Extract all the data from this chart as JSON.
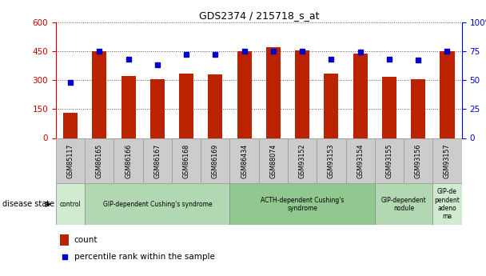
{
  "title": "GDS2374 / 215718_s_at",
  "samples": [
    "GSM85117",
    "GSM86165",
    "GSM86166",
    "GSM86167",
    "GSM86168",
    "GSM86169",
    "GSM86434",
    "GSM88074",
    "GSM93152",
    "GSM93153",
    "GSM93154",
    "GSM93155",
    "GSM93156",
    "GSM93157"
  ],
  "counts": [
    130,
    450,
    320,
    305,
    335,
    330,
    450,
    470,
    455,
    335,
    435,
    315,
    305,
    450
  ],
  "percentiles": [
    48,
    75,
    68,
    63,
    72,
    72,
    75,
    75,
    75,
    68,
    74,
    68,
    67,
    75
  ],
  "groups": [
    {
      "label": "control",
      "start": 0,
      "end": 1,
      "color": "#d0ead0"
    },
    {
      "label": "GIP-dependent Cushing's syndrome",
      "start": 1,
      "end": 6,
      "color": "#b2d8b2"
    },
    {
      "label": "ACTH-dependent Cushing's\nsyndrome",
      "start": 6,
      "end": 11,
      "color": "#90c890"
    },
    {
      "label": "GIP-dependent\nnodule",
      "start": 11,
      "end": 13,
      "color": "#b2d8b2"
    },
    {
      "label": "GIP-de\npendent\nadeno\nma",
      "start": 13,
      "end": 14,
      "color": "#d0ead0"
    }
  ],
  "left_axis_color": "#cc0000",
  "right_axis_color": "#0000cc",
  "bar_color": "#bb2200",
  "dot_color": "#0000cc",
  "ylim_left": [
    0,
    600
  ],
  "ylim_right": [
    0,
    100
  ],
  "left_ticks": [
    0,
    150,
    300,
    450,
    600
  ],
  "right_ticks": [
    0,
    25,
    50,
    75,
    100
  ],
  "tick_bg_color": "#cccccc",
  "tick_border_color": "#999999",
  "grid_color": "#555555"
}
